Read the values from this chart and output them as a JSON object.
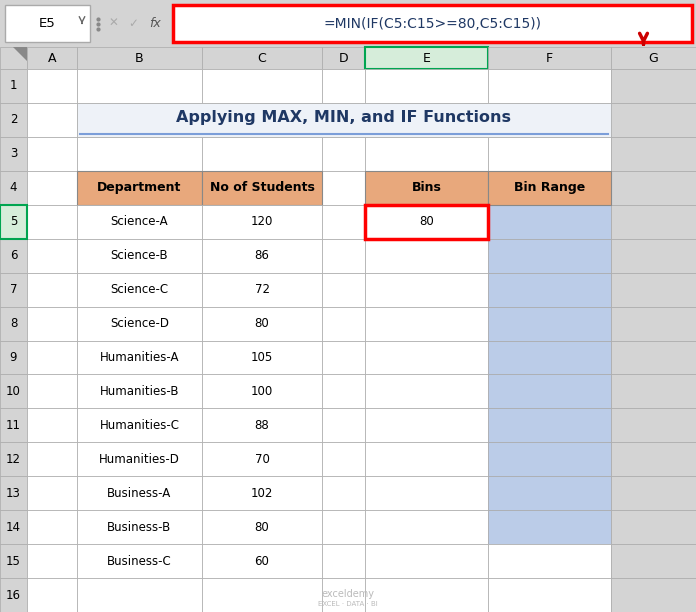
{
  "title": "Applying MAX, MIN, and IF Functions",
  "formula_bar_cell": "E5",
  "formula_bar_text": "=MIN(IF(C5:C15>=80,C5:C15))",
  "dept_header": "Department",
  "students_header": "No of Students",
  "bins_header": "Bins",
  "binrange_header": "Bin Range",
  "departments": [
    "Science-A",
    "Science-B",
    "Science-C",
    "Science-D",
    "Humanities-A",
    "Humanities-B",
    "Humanities-C",
    "Humanities-D",
    "Business-A",
    "Business-B",
    "Business-C"
  ],
  "students": [
    120,
    86,
    72,
    80,
    105,
    100,
    88,
    70,
    102,
    80,
    60
  ],
  "bins_value": "80",
  "header_bg": "#E8A87C",
  "bins_bg": "#BBCCE8",
  "title_bg": "#EEF2F8",
  "selected_col_bg": "#D6EDDA",
  "selected_cell_border": "#FF0000",
  "selected_row_bg": "#D6EDDA",
  "selected_row_border": "#00A550",
  "formula_box_border": "#FF0000",
  "arrow_color": "#CC0000",
  "excel_bg": "#D4D4D4",
  "white": "#FFFFFF",
  "title_color": "#1F3864",
  "grid_color": "#C0C0C0",
  "title_fontsize": 11.5,
  "header_fontsize": 9,
  "cell_fontsize": 8.5,
  "formula_fontsize": 10,
  "col_header_names": [
    "A",
    "B",
    "C",
    "D",
    "E",
    "F",
    "G"
  ],
  "n_data_rows": 16,
  "bins_rows": [
    5,
    6,
    7,
    8,
    9,
    10,
    11,
    12,
    13,
    14
  ],
  "underline_color": "#7B9ED9"
}
